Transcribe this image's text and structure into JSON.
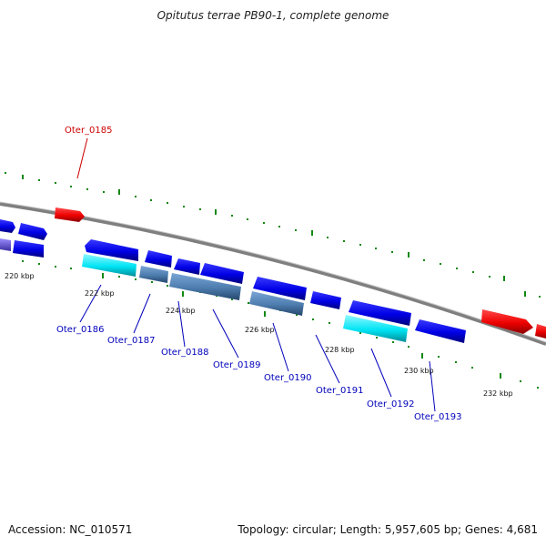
{
  "title": "Opitutus terrae PB90-1, complete genome",
  "footer": {
    "accession": "Accession: NC_010571",
    "topology": "Topology: circular; Length: 5,957,605 bp; Genes: 4,681"
  },
  "colors": {
    "backbone": "#808080",
    "gene_forward": "#0000ee",
    "gene_highlight": "#ee0000",
    "gene_other": "#4d7cae",
    "gene_cyan": "#00e0f0",
    "tick": "#118811",
    "label_blue": "#0000bb",
    "label_red": "#cc0000"
  },
  "ticks": [
    {
      "label": "220 kbp"
    },
    {
      "label": "222 kbp"
    },
    {
      "label": "224 kbp"
    },
    {
      "label": "226 kbp"
    },
    {
      "label": "228 kbp"
    },
    {
      "label": "230 kbp"
    },
    {
      "label": "232 kbp"
    }
  ],
  "gene_labels": [
    {
      "id": "Oter_0185",
      "color": "red"
    },
    {
      "id": "Oter_0186",
      "color": "blue"
    },
    {
      "id": "Oter_0187",
      "color": "blue"
    },
    {
      "id": "Oter_0188",
      "color": "blue"
    },
    {
      "id": "Oter_0189",
      "color": "blue"
    },
    {
      "id": "Oter_0190",
      "color": "blue"
    },
    {
      "id": "Oter_0191",
      "color": "blue"
    },
    {
      "id": "Oter_0192",
      "color": "blue"
    },
    {
      "id": "Oter_0193",
      "color": "blue"
    }
  ]
}
